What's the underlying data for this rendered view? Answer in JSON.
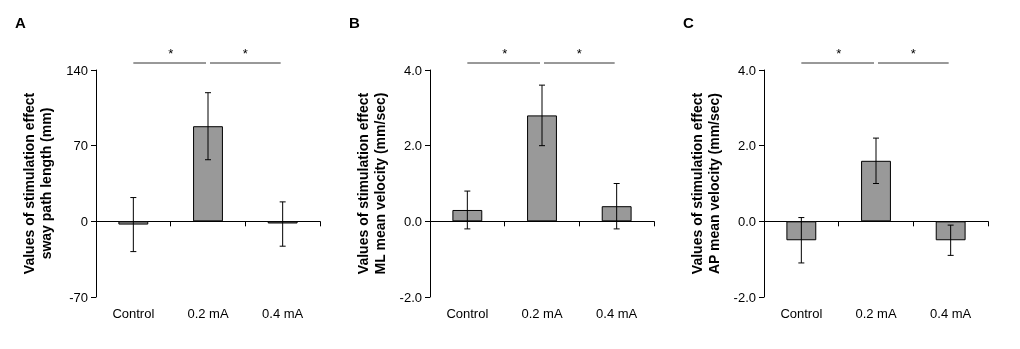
{
  "chart_data": [
    {
      "type": "bar",
      "title": "A",
      "ylabel": "Values of stimulation effect\nsway path length (mm)",
      "categories": [
        "Control",
        "0.2 mA",
        "0.4 mA"
      ],
      "values": [
        -3,
        88,
        -2
      ],
      "errors": [
        [
          -28,
          22
        ],
        [
          57,
          119
        ],
        [
          -23,
          18
        ]
      ],
      "color": "#999999",
      "ylim": [
        -70,
        140
      ],
      "yticks": [
        -70,
        0,
        70,
        140
      ],
      "annotations": [
        "*",
        "*"
      ]
    },
    {
      "type": "bar",
      "title": "B",
      "ylabel": "Values of stimulation effect\nML mean velocity (mm/sec)",
      "categories": [
        "Control",
        "0.2 mA",
        "0.4 mA"
      ],
      "values": [
        0.3,
        2.8,
        0.4
      ],
      "errors": [
        [
          -0.2,
          0.8
        ],
        [
          2.0,
          3.6
        ],
        [
          -0.2,
          1.0
        ]
      ],
      "color": "#999999",
      "ylim": [
        -2,
        4
      ],
      "yticks": [
        {
          "value": -2,
          "label": "-2.0"
        },
        {
          "value": 0,
          "label": "0.0"
        },
        {
          "value": 2,
          "label": "2.0"
        },
        {
          "value": 4,
          "label": "4.0"
        }
      ],
      "annotations": [
        "*",
        "*"
      ]
    },
    {
      "type": "bar",
      "title": "C",
      "ylabel": "Values of stimulation effect\nAP mean velocity (mm/sec)",
      "categories": [
        "Control",
        "0.2 mA",
        "0.4 mA"
      ],
      "values": [
        -0.5,
        1.6,
        -0.5
      ],
      "errors": [
        [
          -1.1,
          0.1
        ],
        [
          1.0,
          2.2
        ],
        [
          -0.9,
          -0.1
        ]
      ],
      "color": "#999999",
      "ylim": [
        -2,
        4
      ],
      "yticks": [
        {
          "value": -2,
          "label": "-2.0"
        },
        {
          "value": 0,
          "label": "0.0"
        },
        {
          "value": 2,
          "label": "2.0"
        },
        {
          "value": 4,
          "label": "4.0"
        }
      ],
      "annotations": [
        "*",
        "*"
      ]
    }
  ]
}
